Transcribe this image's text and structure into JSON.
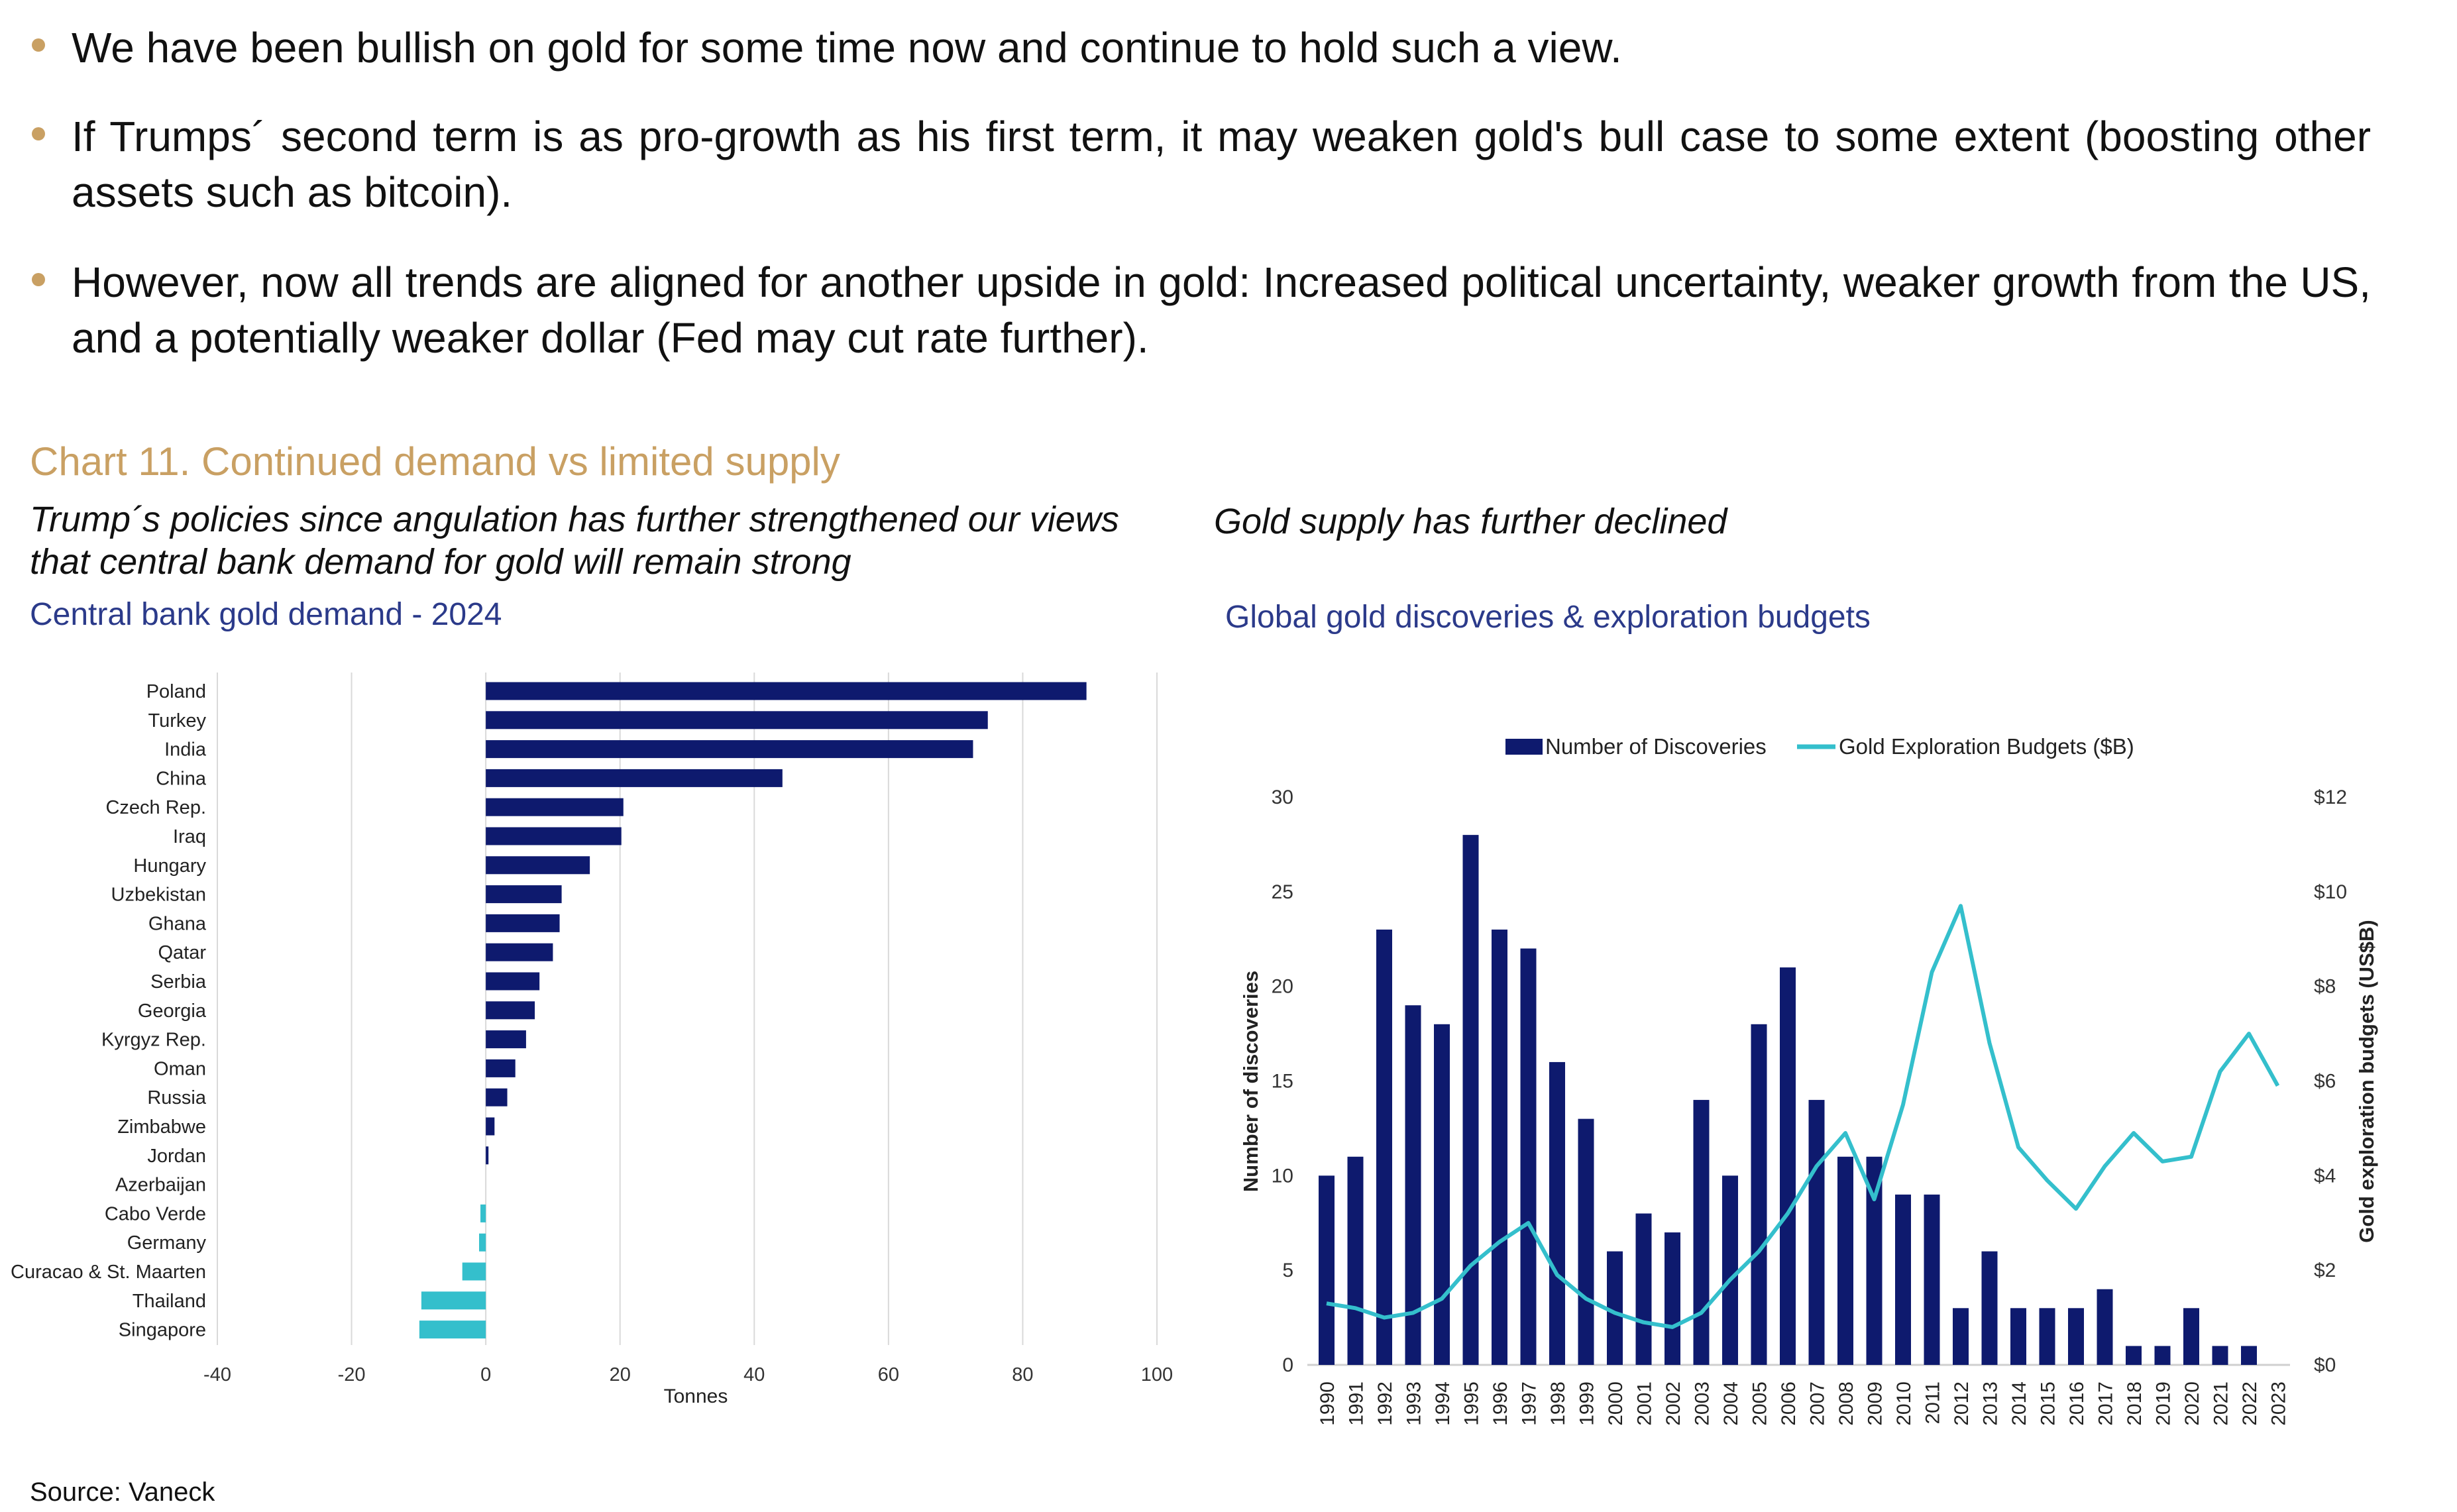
{
  "bullets": [
    "We have been bullish on gold for some time now and continue to hold such a view.",
    "If Trumps´ second term is as pro-growth as his first term, it may weaken gold's bull case to some extent (boosting other assets such as bitcoin).",
    "However, now all trends are aligned for another upside in gold: Increased political uncertainty, weaker growth from the US, and a potentially weaker dollar (Fed may cut rate further)."
  ],
  "chart_heading": "Chart 11. Continued demand vs limited supply",
  "left_caption": "Trump´s policies since angulation has further strengthened our views that central bank demand for gold will remain strong",
  "right_caption": "Gold supply has further declined",
  "source": "Source: Vaneck",
  "colors": {
    "accent": "#c9a063",
    "navy": "#0e1a6e",
    "teal": "#34bfcc",
    "title_blue": "#2b3a8a"
  },
  "chart_data": [
    {
      "type": "bar",
      "orientation": "horizontal",
      "title": "Central bank gold demand - 2024",
      "xlabel": "Tonnes",
      "xlim": [
        -40,
        100
      ],
      "xticks": [
        "-40",
        "-20",
        "0",
        "20",
        "40",
        "60",
        "80",
        "100"
      ],
      "grid": true,
      "categories": [
        "Poland",
        "Turkey",
        "India",
        "China",
        "Czech Rep.",
        "Iraq",
        "Hungary",
        "Uzbekistan",
        "Ghana",
        "Qatar",
        "Serbia",
        "Georgia",
        "Kyrgyz Rep.",
        "Oman",
        "Russia",
        "Zimbabwe",
        "Jordan",
        "Azerbaijan",
        "Cabo Verde",
        "Germany",
        "Curacao & St. Maarten",
        "Thailand",
        "Singapore"
      ],
      "values": [
        89.5,
        74.8,
        72.6,
        44.2,
        20.5,
        20.2,
        15.5,
        11.3,
        11.0,
        10.0,
        8.0,
        7.3,
        6.0,
        4.4,
        3.2,
        1.3,
        0.4,
        0,
        -0.8,
        -1.0,
        -3.5,
        -9.6,
        -9.9
      ],
      "positive_color": "#0e1a6e",
      "negative_color": "#34bfcc"
    },
    {
      "type": "bar+line",
      "title": "Global gold discoveries & exploration budgets",
      "ylabel": "Number of discoveries",
      "y2label": "Gold exploration budgets (US$B)",
      "ylim": [
        0,
        30
      ],
      "y2lim": [
        0,
        12
      ],
      "yticks": [
        "0",
        "5",
        "10",
        "15",
        "20",
        "25",
        "30"
      ],
      "y2ticks": [
        "$0",
        "$2",
        "$4",
        "$6",
        "$8",
        "$10",
        "$12"
      ],
      "legend_position": "top",
      "categories": [
        "1990",
        "1991",
        "1992",
        "1993",
        "1994",
        "1995",
        "1996",
        "1997",
        "1998",
        "1999",
        "2000",
        "2001",
        "2002",
        "2003",
        "2004",
        "2005",
        "2006",
        "2007",
        "2008",
        "2009",
        "2010",
        "2011",
        "2012",
        "2013",
        "2014",
        "2015",
        "2016",
        "2017",
        "2018",
        "2019",
        "2020",
        "2021",
        "2022",
        "2023"
      ],
      "series": [
        {
          "name": "Number of Discoveries",
          "type": "bar",
          "axis": "left",
          "color": "#0e1a6e",
          "values": [
            10,
            11,
            23,
            19,
            18,
            28,
            23,
            22,
            16,
            13,
            6,
            8,
            7,
            14,
            10,
            18,
            21,
            14,
            11,
            11,
            9,
            9,
            3,
            6,
            3,
            3,
            3,
            4,
            1,
            1,
            3,
            1,
            1,
            null
          ]
        },
        {
          "name": "Gold Exploration Budgets ($B)",
          "type": "line",
          "axis": "right",
          "color": "#34bfcc",
          "values": [
            1.3,
            1.2,
            1.0,
            1.1,
            1.4,
            2.1,
            2.6,
            3.0,
            1.9,
            1.4,
            1.1,
            0.9,
            0.8,
            1.1,
            1.8,
            2.4,
            3.2,
            4.2,
            4.9,
            3.5,
            5.5,
            8.3,
            9.7,
            6.8,
            4.6,
            3.9,
            3.3,
            4.2,
            4.9,
            4.3,
            4.4,
            6.2,
            7.0,
            5.9
          ]
        }
      ]
    }
  ]
}
